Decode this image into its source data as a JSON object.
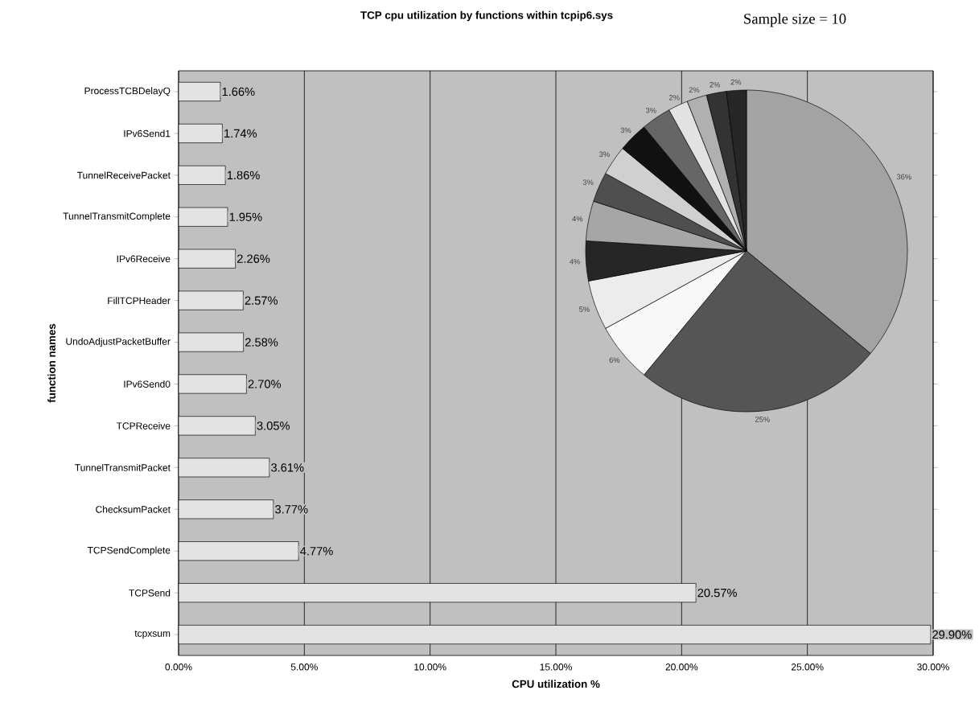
{
  "chart_data": [
    {
      "type": "bar",
      "orientation": "horizontal",
      "title": "TCP cpu utilization by functions within tcpip6.sys",
      "xlabel": "CPU utilization %",
      "ylabel": "function names",
      "annotations": [
        "Sample size = 10"
      ],
      "categories": [
        "ProcessTCBDelayQ",
        "IPv6Send1",
        "TunnelReceivePacket",
        "TunnelTransmitComplete",
        "IPv6Receive",
        "FillTCPHeader",
        "UndoAdjustPacketBuffer",
        "IPv6Send0",
        "TCPReceive",
        "TunnelTransmitPacket",
        "ChecksumPacket",
        "TCPSendComplete",
        "TCPSend",
        "tcpxsum"
      ],
      "values": [
        1.66,
        1.74,
        1.86,
        1.95,
        2.26,
        2.57,
        2.58,
        2.7,
        3.05,
        3.61,
        3.77,
        4.77,
        20.57,
        29.9
      ],
      "value_labels": [
        "1.66%",
        "1.74%",
        "1.86%",
        "1.95%",
        "2.26%",
        "2.57%",
        "2.58%",
        "2.70%",
        "3.05%",
        "3.61%",
        "3.77%",
        "4.77%",
        "20.57%",
        "29.90%"
      ],
      "color": "#e3e3e3",
      "xlim": [
        0,
        30
      ],
      "xticks": [
        {
          "value": 0,
          "label": "0.00%"
        },
        {
          "value": 5,
          "label": "5.00%"
        },
        {
          "value": 10,
          "label": "10.00%"
        },
        {
          "value": 15,
          "label": "15.00%"
        },
        {
          "value": 20,
          "label": "20.00%"
        },
        {
          "value": 25,
          "label": "25.00%"
        },
        {
          "value": 30,
          "label": "30.00%"
        }
      ],
      "grid": "x"
    },
    {
      "type": "pie",
      "categories": [
        null,
        null,
        null,
        null,
        null,
        null,
        null,
        null,
        null,
        null,
        null,
        null,
        null,
        null
      ],
      "values": [
        36,
        25,
        6,
        5,
        4,
        4,
        3,
        3,
        3,
        3,
        2,
        2,
        2,
        2
      ],
      "value_labels": [
        "36%",
        "25%",
        "6%",
        "5%",
        "4%",
        "4%",
        "3%",
        "3%",
        "3%",
        "3%",
        "2%",
        "2%",
        "2%",
        "2%"
      ],
      "colors": [
        "#a3a3a3",
        "#555555",
        "#f8f8f8",
        "#ececec",
        "#262626",
        "#a6a6a6",
        "#4f4f4f",
        "#d0d0d0",
        "#111111",
        "#666666",
        "#e2e2e2",
        "#b0b0b0",
        "#333333",
        "#262626"
      ]
    }
  ]
}
